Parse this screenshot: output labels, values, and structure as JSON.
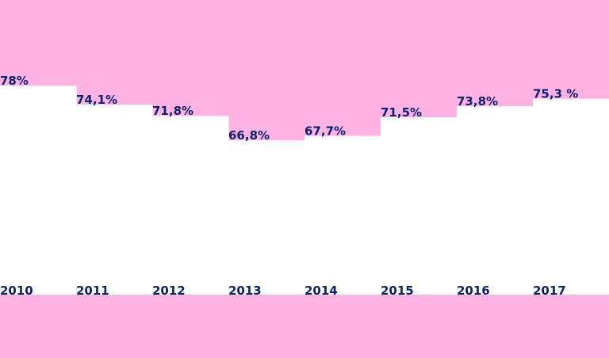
{
  "chart_data": {
    "type": "area",
    "categories": [
      "2010",
      "2011",
      "2012",
      "2013",
      "2014",
      "2015",
      "2016",
      "2017"
    ],
    "values": [
      78,
      74.1,
      71.8,
      66.8,
      67.7,
      71.5,
      73.8,
      75.3
    ],
    "value_labels": [
      "78%",
      "74,1%",
      "71,8%",
      "66,8%",
      "67,7%",
      "71,5%",
      "73,8%",
      "75,3 %"
    ],
    "title": "",
    "xlabel": "",
    "ylabel": "",
    "ylim": [
      0,
      100
    ],
    "grid": false,
    "legend": "none"
  },
  "colors": {
    "background": "#FFB3E3",
    "fill": "#FFFFFF",
    "text": "#0B1F6B"
  }
}
